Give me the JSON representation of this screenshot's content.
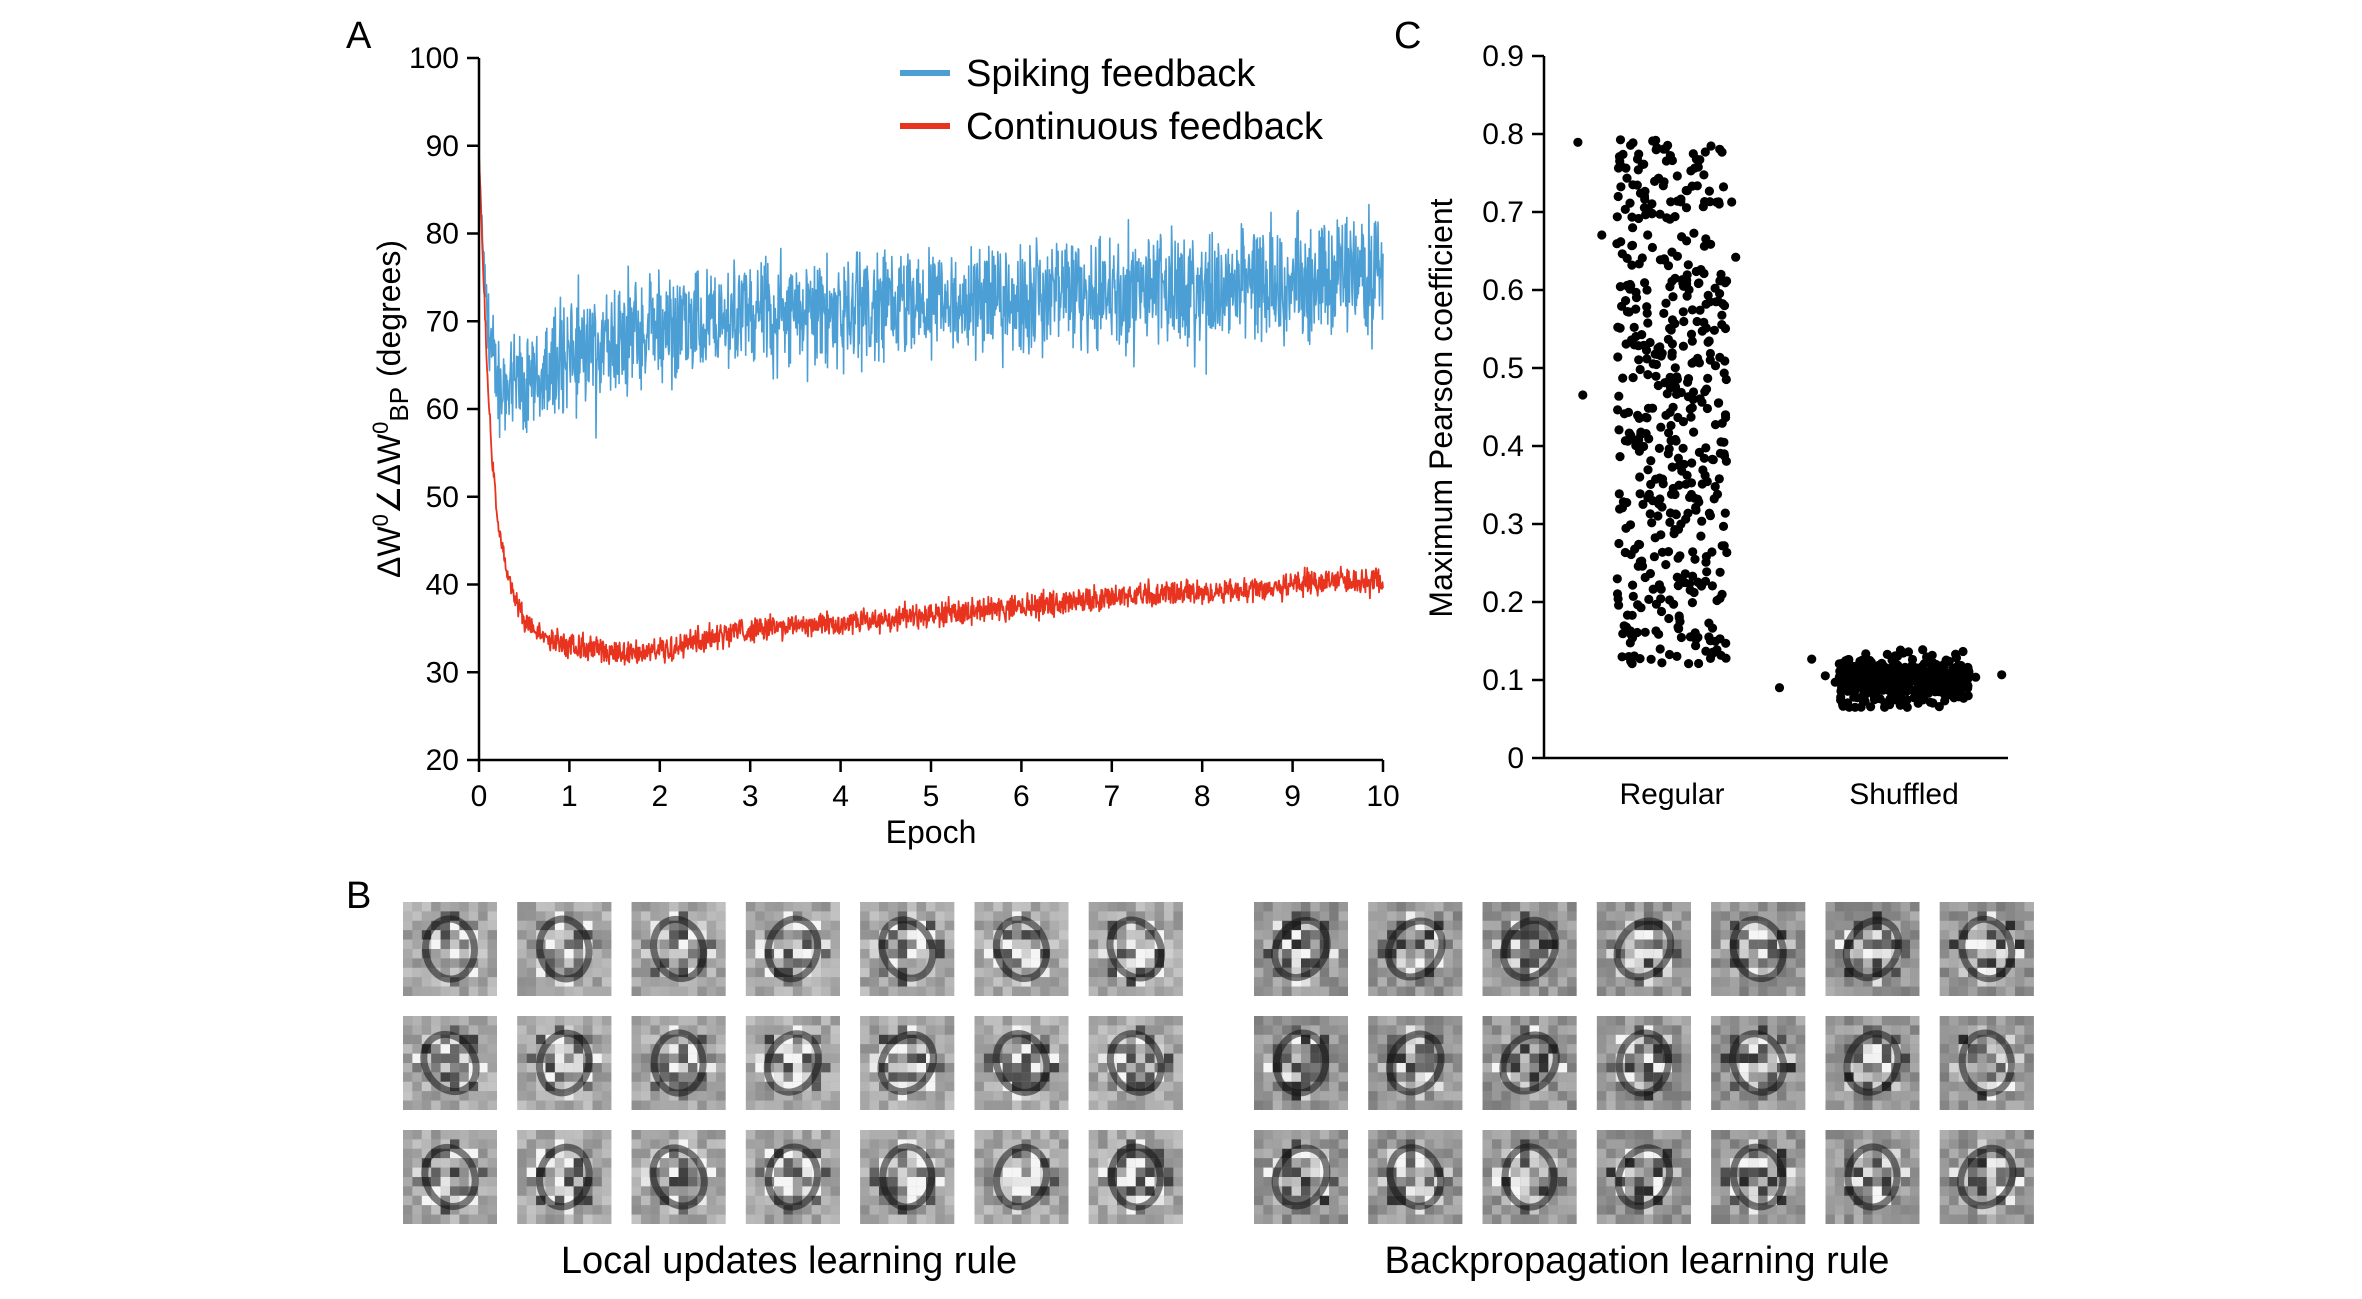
{
  "panels": {
    "a": {
      "letter": "A"
    },
    "b": {
      "letter": "B"
    },
    "c": {
      "letter": "C"
    }
  },
  "chart_data": [
    {
      "id": "A",
      "type": "line",
      "title": "",
      "xlabel": "Epoch",
      "ylabel": "ΔW⁰∠ΔW⁰BP (degrees)",
      "ylabel_parts": {
        "base": "ΔW",
        "sup": "0",
        "angle": "∠ΔW",
        "sup2": "0",
        "sub": "BP",
        "unit": "(degrees)"
      },
      "xlim": [
        0,
        10
      ],
      "ylim": [
        20,
        100
      ],
      "xticks": [
        0,
        1,
        2,
        3,
        4,
        5,
        6,
        7,
        8,
        9,
        10
      ],
      "yticks": [
        20,
        30,
        40,
        50,
        60,
        70,
        80,
        90,
        100
      ],
      "legend_position": "top-right",
      "series": [
        {
          "name": "Spiking feedback",
          "color": "#4c9fd4",
          "x": [
            0,
            0.05,
            0.1,
            0.2,
            0.35,
            0.6,
            1,
            1.5,
            2,
            2.5,
            3,
            3.5,
            4,
            4.5,
            5,
            5.5,
            6,
            6.5,
            7,
            7.5,
            8,
            8.5,
            9,
            9.5,
            10
          ],
          "mean": [
            89,
            77,
            69,
            64,
            62,
            63,
            66,
            68,
            69,
            70,
            70.5,
            71,
            71,
            71.5,
            72,
            72,
            72.5,
            73,
            73,
            73.5,
            74,
            74,
            74.5,
            75,
            75.5
          ],
          "spread": [
            0.5,
            3,
            6,
            8,
            9,
            9,
            9,
            9,
            9,
            9,
            9,
            9,
            9,
            9,
            9,
            9,
            9,
            9,
            9,
            9,
            9,
            9,
            9,
            9,
            9
          ]
        },
        {
          "name": "Continuous feedback",
          "color": "#e8331f",
          "x": [
            0,
            0.05,
            0.1,
            0.15,
            0.2,
            0.3,
            0.4,
            0.5,
            0.7,
            1,
            1.5,
            2,
            2.5,
            3,
            3.5,
            4,
            4.5,
            5,
            5.5,
            6,
            6.5,
            7,
            7.5,
            8,
            8.5,
            9,
            9.5,
            10
          ],
          "mean": [
            89,
            75,
            62,
            54,
            48,
            42,
            38,
            36,
            34,
            33,
            32,
            32.5,
            34,
            35,
            35.5,
            35.5,
            36,
            36.5,
            37,
            37.5,
            38,
            38.5,
            39,
            39,
            39.5,
            40,
            40.5,
            40.5
          ],
          "spread": [
            0.3,
            1,
            1.5,
            1.5,
            1.5,
            1.5,
            1.8,
            2,
            2,
            2,
            2,
            2,
            2,
            2,
            2,
            2,
            2,
            2,
            2,
            2,
            2,
            2,
            2,
            2,
            2,
            2,
            2.2,
            2.2
          ]
        }
      ]
    },
    {
      "id": "C",
      "type": "scatter",
      "title": "",
      "xlabel": "",
      "ylabel": "Maximum Pearson coefficient",
      "categories": [
        "Regular",
        "Shuffled"
      ],
      "ylim": [
        0,
        0.9
      ],
      "yticks": [
        0,
        0.1,
        0.2,
        0.3,
        0.4,
        0.5,
        0.6,
        0.7,
        0.8,
        0.9
      ],
      "point_color": "#000000",
      "groups": [
        {
          "category": "Regular",
          "count": 500,
          "min": 0.12,
          "max": 0.8,
          "mean": 0.48
        },
        {
          "category": "Shuffled",
          "count": 500,
          "min": 0.065,
          "max": 0.155,
          "mean": 0.1
        }
      ]
    }
  ],
  "panel_b": {
    "groups": [
      {
        "caption": "Local updates learning rule",
        "rows": 3,
        "cols": 7
      },
      {
        "caption": "Backpropagation learning rule",
        "rows": 3,
        "cols": 7
      }
    ]
  }
}
